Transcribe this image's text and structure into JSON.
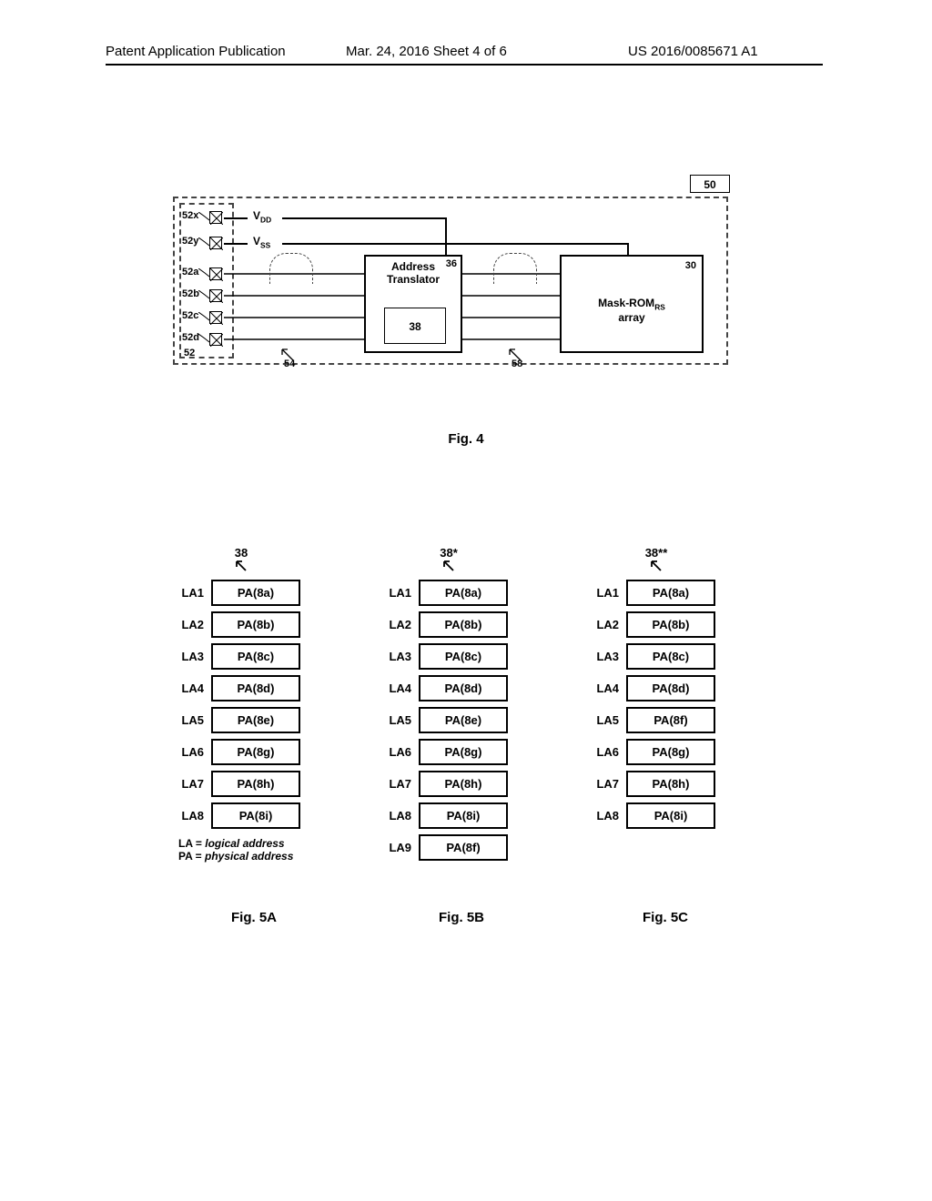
{
  "header": {
    "left": "Patent Application Publication",
    "center": "Mar. 24, 2016  Sheet 4 of 6",
    "right": "US 2016/0085671 A1"
  },
  "fig4": {
    "caption": "Fig. 4",
    "outer_ref": "50",
    "pad_block_ref": "52",
    "pads": {
      "x": "52x",
      "y": "52y",
      "a": "52a",
      "b": "52b",
      "c": "52c",
      "d": "52d"
    },
    "vdd": "V",
    "vdd_sub": "DD",
    "vss": "V",
    "vss_sub": "SS",
    "bus54_ref": "54",
    "bus58_ref": "58",
    "addr_box_title1": "Address",
    "addr_box_title2": "Translator",
    "addr_box_ref": "36",
    "inner_ref": "38",
    "rom_ref": "30",
    "rom_title1": "Mask-ROM",
    "rom_title_sub": "RS",
    "rom_title2": "array"
  },
  "tables": {
    "legend1_prefix": "LA = ",
    "legend1_ital": "logical address",
    "legend2_prefix": "PA = ",
    "legend2_ital": "physical address",
    "col_a": {
      "header": "38",
      "caption": "Fig. 5A",
      "rows": [
        {
          "la": "LA1",
          "pa": "PA(8a)"
        },
        {
          "la": "LA2",
          "pa": "PA(8b)"
        },
        {
          "la": "LA3",
          "pa": "PA(8c)"
        },
        {
          "la": "LA4",
          "pa": "PA(8d)"
        },
        {
          "la": "LA5",
          "pa": "PA(8e)"
        },
        {
          "la": "LA6",
          "pa": "PA(8g)"
        },
        {
          "la": "LA7",
          "pa": "PA(8h)"
        },
        {
          "la": "LA8",
          "pa": "PA(8i)"
        }
      ]
    },
    "col_b": {
      "header": "38*",
      "caption": "Fig. 5B",
      "rows": [
        {
          "la": "LA1",
          "pa": "PA(8a)"
        },
        {
          "la": "LA2",
          "pa": "PA(8b)"
        },
        {
          "la": "LA3",
          "pa": "PA(8c)"
        },
        {
          "la": "LA4",
          "pa": "PA(8d)"
        },
        {
          "la": "LA5",
          "pa": "PA(8e)"
        },
        {
          "la": "LA6",
          "pa": "PA(8g)"
        },
        {
          "la": "LA7",
          "pa": "PA(8h)"
        },
        {
          "la": "LA8",
          "pa": "PA(8i)"
        },
        {
          "la": "LA9",
          "pa": "PA(8f)"
        }
      ]
    },
    "col_c": {
      "header": "38**",
      "caption": "Fig. 5C",
      "rows": [
        {
          "la": "LA1",
          "pa": "PA(8a)"
        },
        {
          "la": "LA2",
          "pa": "PA(8b)"
        },
        {
          "la": "LA3",
          "pa": "PA(8c)"
        },
        {
          "la": "LA4",
          "pa": "PA(8d)"
        },
        {
          "la": "LA5",
          "pa": "PA(8f)"
        },
        {
          "la": "LA6",
          "pa": "PA(8g)"
        },
        {
          "la": "LA7",
          "pa": "PA(8h)"
        },
        {
          "la": "LA8",
          "pa": "PA(8i)"
        }
      ]
    }
  },
  "colors": {
    "fg": "#000000",
    "bg": "#ffffff",
    "dash": "#444444"
  }
}
